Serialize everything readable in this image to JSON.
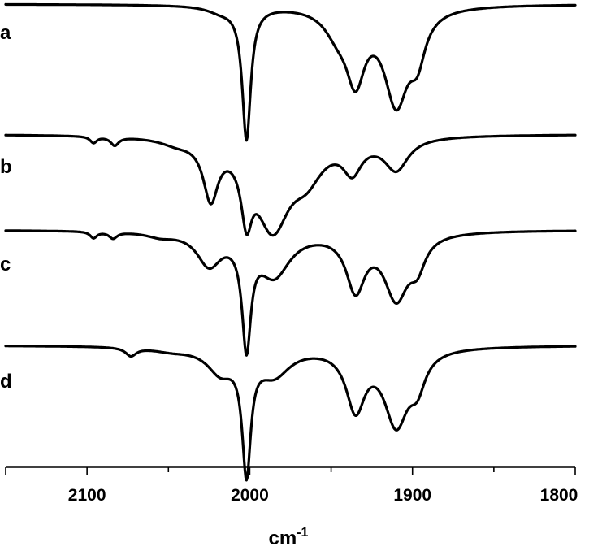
{
  "chart_data": {
    "type": "line",
    "title": "",
    "xlabel": "cm-1",
    "xlabel_base": "cm",
    "xlabel_sup": "-1",
    "ylabel": "",
    "x_reversed": true,
    "xlim": [
      2150,
      1800
    ],
    "x_ticks": [
      2100,
      2000,
      1900,
      1800
    ],
    "grid": false,
    "legend": "none",
    "line_color": "#000000",
    "series": [
      {
        "name": "a",
        "baseline": 0,
        "peaks": [
          {
            "center": 2002,
            "depth": 1.0,
            "width": 3.2
          },
          {
            "center": 2018,
            "depth": 0.04,
            "width": 10
          },
          {
            "center": 1935,
            "depth": 0.5,
            "width": 7
          },
          {
            "center": 1910,
            "depth": 0.7,
            "width": 9
          },
          {
            "center": 1946,
            "depth": 0.16,
            "width": 10
          },
          {
            "center": 1897,
            "depth": 0.3,
            "width": 6
          }
        ]
      },
      {
        "name": "b",
        "baseline": 0,
        "peaks": [
          {
            "center": 2096,
            "depth": 0.06,
            "width": 2.5
          },
          {
            "center": 2083,
            "depth": 0.08,
            "width": 3
          },
          {
            "center": 2045,
            "depth": 0.05,
            "width": 12
          },
          {
            "center": 2024,
            "depth": 0.53,
            "width": 5.5
          },
          {
            "center": 2002,
            "depth": 0.55,
            "width": 4
          },
          {
            "center": 1986,
            "depth": 0.83,
            "width": 13
          },
          {
            "center": 1965,
            "depth": 0.3,
            "width": 12
          },
          {
            "center": 1937,
            "depth": 0.28,
            "width": 7
          },
          {
            "center": 1910,
            "depth": 0.3,
            "width": 9
          }
        ]
      },
      {
        "name": "c",
        "baseline": 0,
        "peaks": [
          {
            "center": 2096,
            "depth": 0.06,
            "width": 2.5
          },
          {
            "center": 2084,
            "depth": 0.06,
            "width": 3
          },
          {
            "center": 2055,
            "depth": 0.04,
            "width": 10
          },
          {
            "center": 2025,
            "depth": 0.3,
            "width": 9
          },
          {
            "center": 2002,
            "depth": 1.0,
            "width": 3.3
          },
          {
            "center": 1985,
            "depth": 0.4,
            "width": 12
          },
          {
            "center": 1935,
            "depth": 0.52,
            "width": 7
          },
          {
            "center": 1910,
            "depth": 0.6,
            "width": 9
          },
          {
            "center": 1897,
            "depth": 0.25,
            "width": 6
          }
        ]
      },
      {
        "name": "d",
        "baseline": 0,
        "peaks": [
          {
            "center": 2073,
            "depth": 0.07,
            "width": 4
          },
          {
            "center": 2048,
            "depth": 0.03,
            "width": 14
          },
          {
            "center": 2018,
            "depth": 0.2,
            "width": 10
          },
          {
            "center": 2002,
            "depth": 1.0,
            "width": 3.2
          },
          {
            "center": 1985,
            "depth": 0.22,
            "width": 12
          },
          {
            "center": 1935,
            "depth": 0.5,
            "width": 7
          },
          {
            "center": 1910,
            "depth": 0.63,
            "width": 9
          },
          {
            "center": 1897,
            "depth": 0.25,
            "width": 6
          }
        ]
      }
    ]
  }
}
